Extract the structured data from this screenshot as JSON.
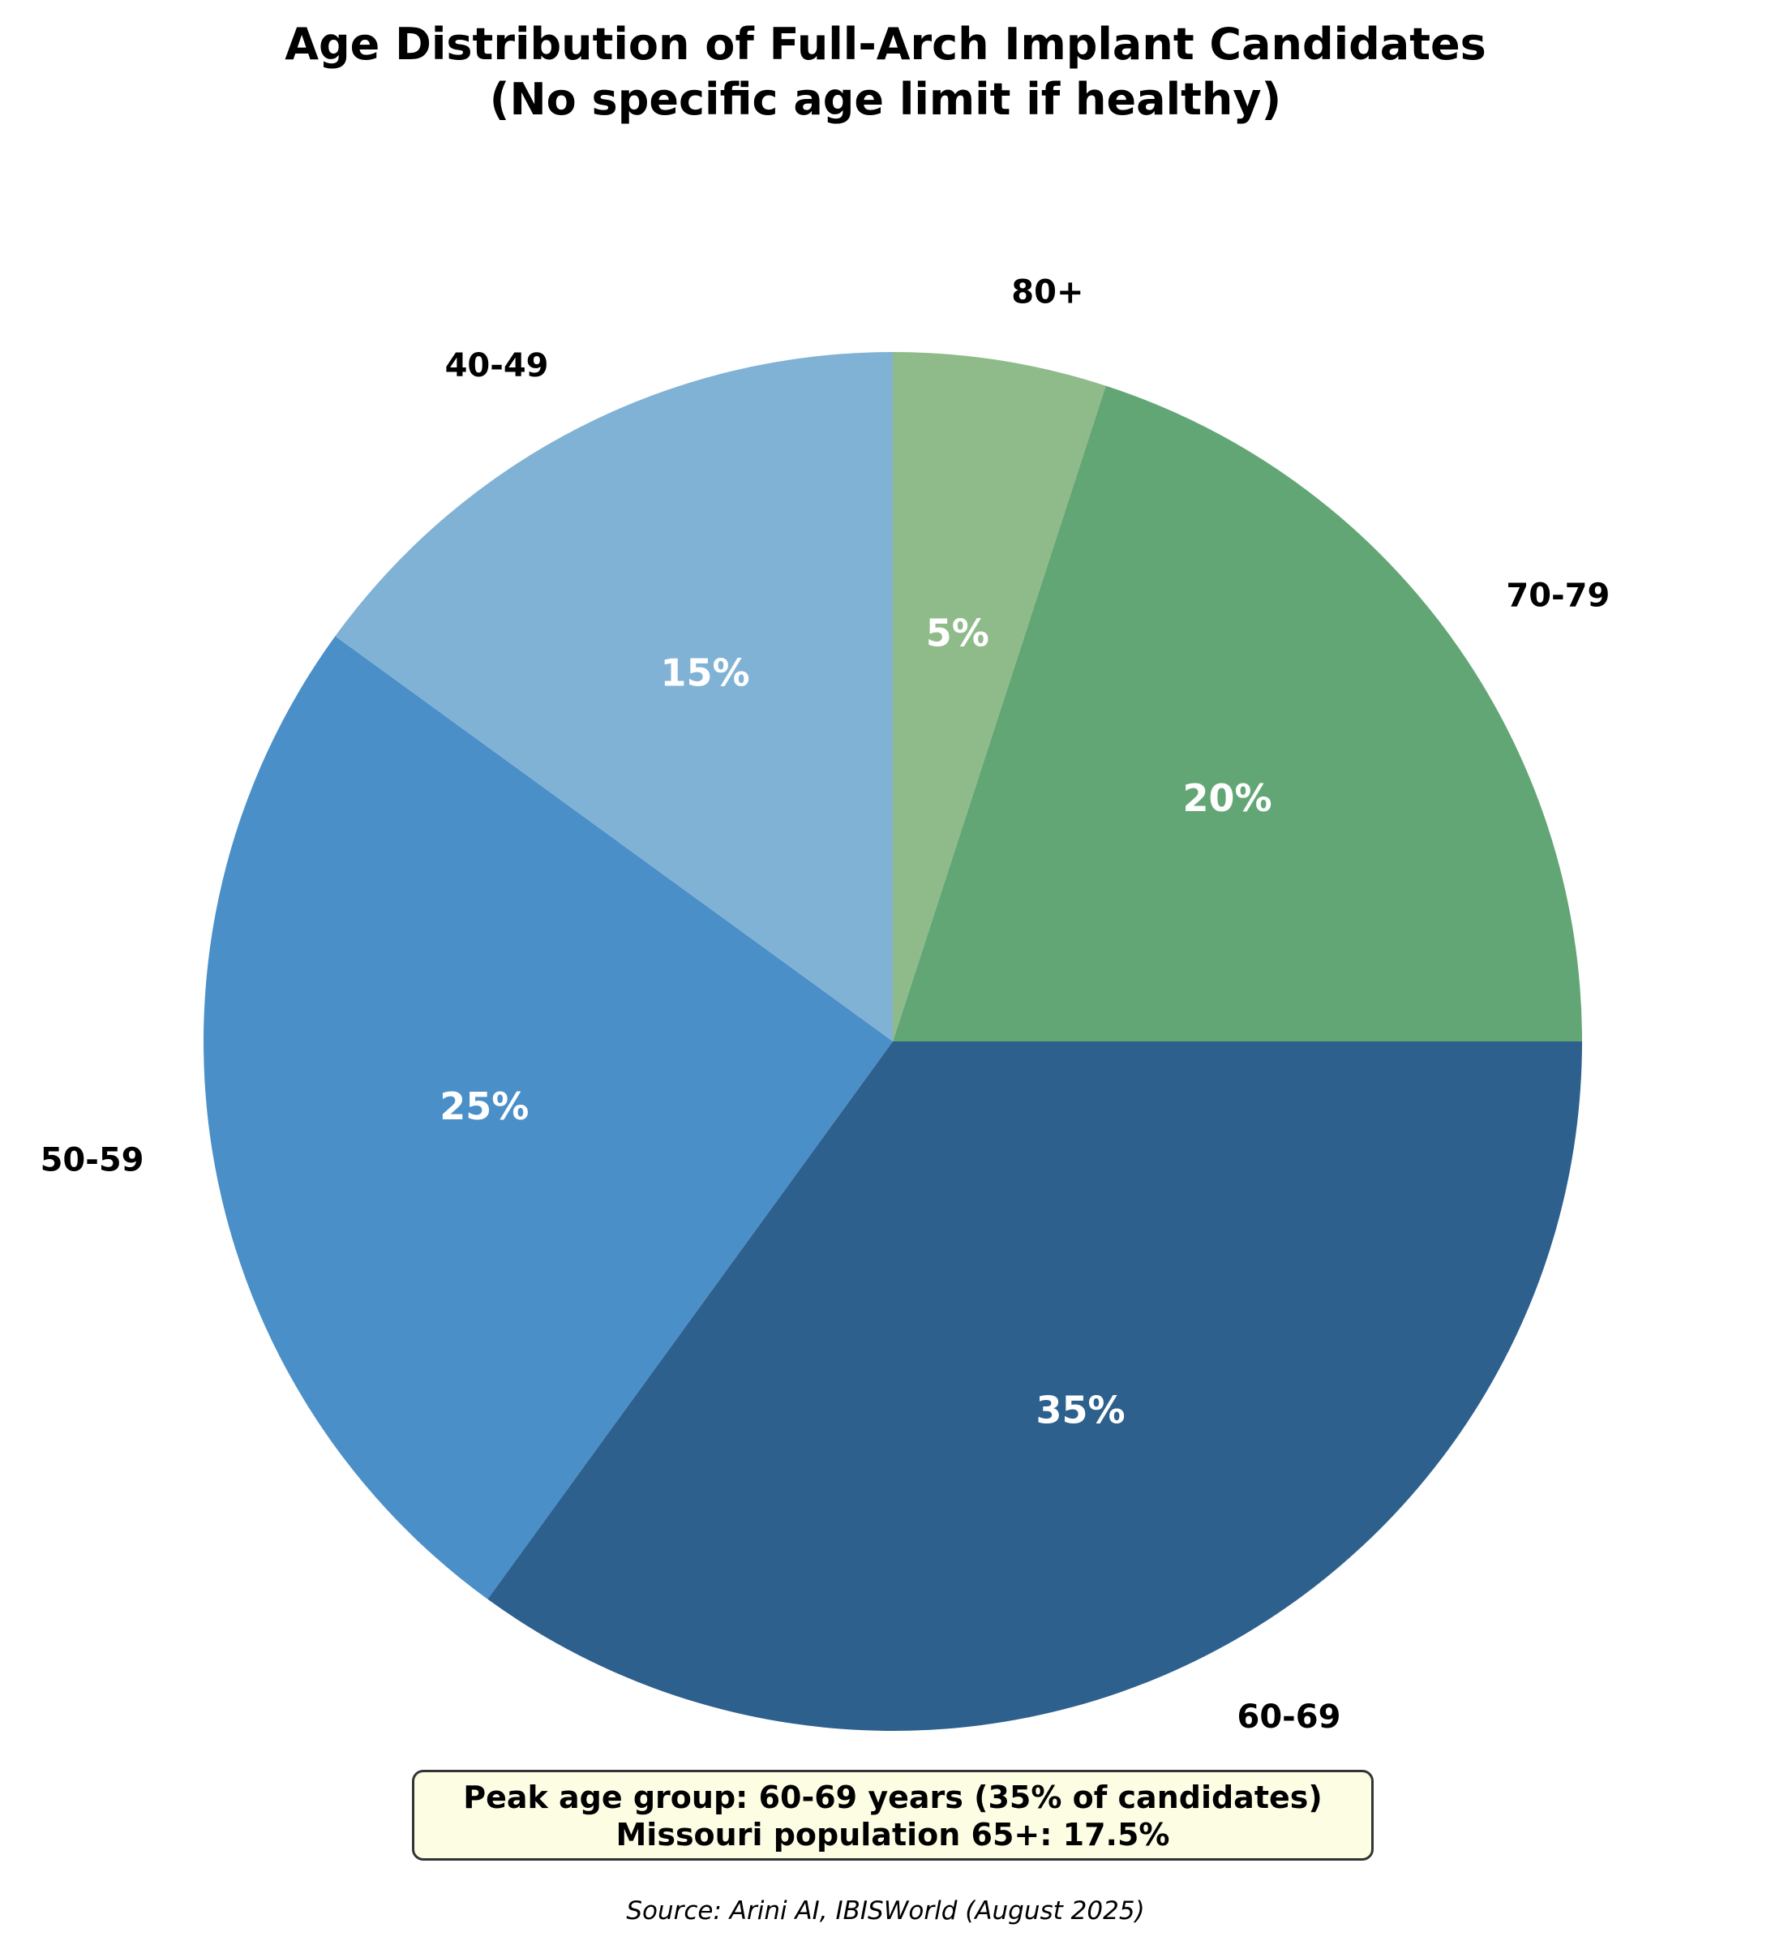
{
  "chart_data": {
    "type": "pie",
    "title": "Age Distribution of Full-Arch Implant Candidates",
    "subtitle": "(No specific age limit if healthy)",
    "categories": [
      "40-49",
      "50-59",
      "60-69",
      "70-79",
      "80+"
    ],
    "values": [
      15,
      25,
      35,
      20,
      5
    ],
    "value_labels": [
      "15%",
      "25%",
      "35%",
      "20%",
      "5%"
    ],
    "colors": [
      "#80b2d5",
      "#4a8fc8",
      "#2e608e",
      "#63a676",
      "#8fbb8b"
    ],
    "start_angle_deg": 90,
    "direction": "counterclockwise",
    "legend": "none"
  },
  "annotation": {
    "line1": "Peak age group: 60-69 years (35% of candidates)",
    "line2": "Missouri population 65+: 17.5%"
  },
  "source": "Source: Arini AI, IBISWorld (August 2025)"
}
